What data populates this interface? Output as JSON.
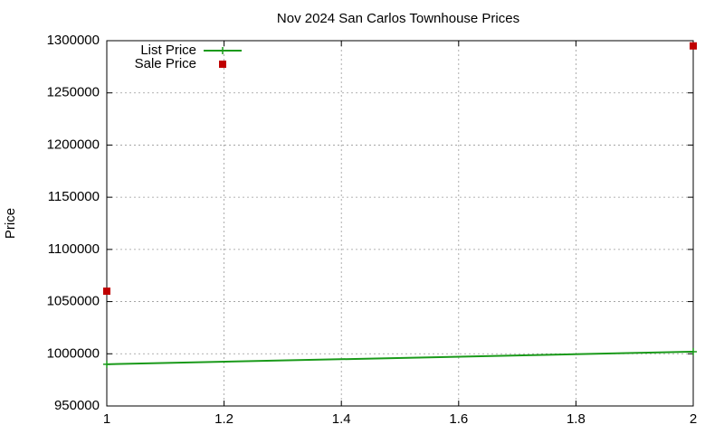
{
  "chart_data": {
    "type": "line",
    "title": "Nov 2024 San Carlos Townhouse Prices",
    "y_label": "Price",
    "x": [
      1,
      2
    ],
    "series": [
      {
        "name": "List Price",
        "color": "#1a9a1a",
        "mode": "lines+points",
        "values": [
          990000,
          1002000
        ]
      },
      {
        "name": "Sale Price",
        "color": "#c00000",
        "mode": "points",
        "values": [
          1060000,
          1295000
        ]
      }
    ],
    "xlim": [
      1,
      2
    ],
    "xticks": [
      1,
      1.2,
      1.4,
      1.6,
      1.8,
      2
    ],
    "ylim": [
      950000,
      1300000
    ],
    "yticks": [
      950000,
      1000000,
      1050000,
      1100000,
      1150000,
      1200000,
      1250000,
      1300000
    ],
    "grid": true,
    "legend": "top-left"
  }
}
